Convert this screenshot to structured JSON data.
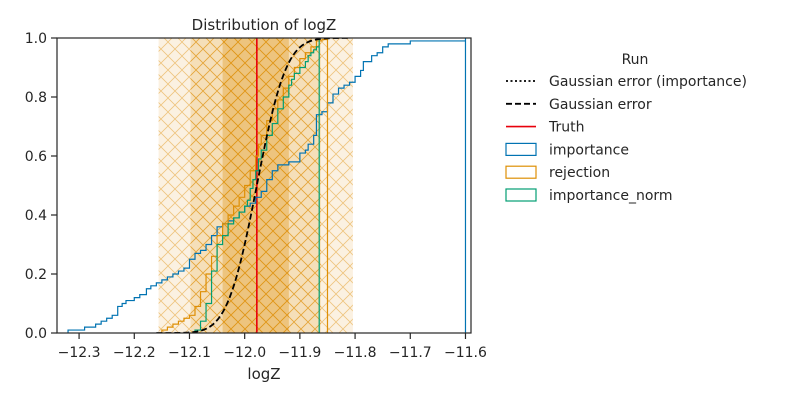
{
  "chart_data": {
    "type": "area",
    "title": "Distribution of logZ",
    "xlabel": "logZ",
    "ylabel": "",
    "xlim": [
      -12.34,
      -11.59
    ],
    "ylim": [
      0,
      1.0
    ],
    "xticks": [
      -12.3,
      -12.2,
      -12.1,
      -12.0,
      -11.9,
      -11.8,
      -11.7,
      -11.6
    ],
    "xtick_labels": [
      "−12.3",
      "−12.2",
      "−12.1",
      "−12.0",
      "−11.9",
      "−11.8",
      "−11.7",
      "−11.6"
    ],
    "yticks": [
      0.0,
      0.2,
      0.4,
      0.6,
      0.8,
      1.0
    ],
    "ytick_labels": [
      "0.0",
      "0.2",
      "0.4",
      "0.6",
      "0.8",
      "1.0"
    ],
    "grid": false,
    "legend_position": "right, outside plot",
    "legend_title": "Run",
    "legend": [
      {
        "label": "Gaussian error (importance)",
        "style": "dotted",
        "color": "#000000"
      },
      {
        "label": "Gaussian error",
        "style": "dashed",
        "color": "#000000"
      },
      {
        "label": "Truth",
        "style": "line",
        "color": "#e8000b"
      },
      {
        "label": "importance",
        "style": "box",
        "color": "#0173b2"
      },
      {
        "label": "rejection",
        "style": "box",
        "color": "#de8f05"
      },
      {
        "label": "importance_norm",
        "style": "box",
        "color": "#029e73"
      }
    ],
    "truth": -11.978,
    "error_bands": [
      {
        "x0": -12.156,
        "x1": -11.804,
        "color": "#de8f05",
        "opacity": 0.12,
        "hatch": true
      },
      {
        "x0": -12.098,
        "x1": -11.862,
        "color": "#de8f05",
        "opacity": 0.18,
        "hatch": true
      },
      {
        "x0": -12.04,
        "x1": -11.92,
        "color": "#de8f05",
        "opacity": 0.33,
        "hatch": true
      }
    ],
    "gaussian": {
      "mean": -11.978,
      "sigma": 0.042,
      "x_range": [
        -12.16,
        -11.81
      ]
    },
    "series": [
      {
        "name": "importance",
        "color": "#0173b2",
        "x": [
          -12.32,
          -12.29,
          -12.27,
          -12.26,
          -12.25,
          -12.24,
          -12.23,
          -12.222,
          -12.215,
          -12.2,
          -12.19,
          -12.178,
          -12.17,
          -12.16,
          -12.15,
          -12.14,
          -12.13,
          -12.12,
          -12.11,
          -12.1,
          -12.09,
          -12.08,
          -12.07,
          -12.06,
          -12.05,
          -12.04,
          -12.03,
          -12.02,
          -12.01,
          -12.0,
          -11.99,
          -11.98,
          -11.97,
          -11.96,
          -11.95,
          -11.94,
          -11.92,
          -11.9,
          -11.89,
          -11.885,
          -11.875,
          -11.87,
          -11.86,
          -11.85,
          -11.84,
          -11.83,
          -11.82,
          -11.81,
          -11.8,
          -11.79,
          -11.785,
          -11.77,
          -11.76,
          -11.75,
          -11.74,
          -11.72,
          -11.7,
          -11.68,
          -11.65,
          -11.6
        ],
        "y": [
          0.01,
          0.02,
          0.03,
          0.04,
          0.05,
          0.06,
          0.09,
          0.1,
          0.11,
          0.12,
          0.13,
          0.15,
          0.16,
          0.17,
          0.18,
          0.19,
          0.2,
          0.21,
          0.22,
          0.25,
          0.27,
          0.28,
          0.3,
          0.33,
          0.36,
          0.37,
          0.38,
          0.39,
          0.41,
          0.43,
          0.44,
          0.46,
          0.48,
          0.52,
          0.55,
          0.57,
          0.58,
          0.61,
          0.62,
          0.64,
          0.67,
          0.74,
          0.75,
          0.78,
          0.81,
          0.83,
          0.84,
          0.85,
          0.87,
          0.89,
          0.92,
          0.94,
          0.95,
          0.97,
          0.98,
          0.98,
          0.99,
          0.99,
          0.99,
          1.0
        ]
      },
      {
        "name": "rejection",
        "color": "#de8f05",
        "x": [
          -12.15,
          -12.14,
          -12.13,
          -12.12,
          -12.11,
          -12.1,
          -12.09,
          -12.08,
          -12.07,
          -12.06,
          -12.05,
          -12.04,
          -12.03,
          -12.02,
          -12.01,
          -12.0,
          -11.99,
          -11.98,
          -11.975,
          -11.97,
          -11.96,
          -11.95,
          -11.94,
          -11.93,
          -11.92,
          -11.91,
          -11.9,
          -11.89,
          -11.88,
          -11.87,
          -11.86,
          -11.85
        ],
        "y": [
          0.01,
          0.02,
          0.03,
          0.04,
          0.05,
          0.06,
          0.09,
          0.14,
          0.2,
          0.26,
          0.33,
          0.37,
          0.4,
          0.43,
          0.46,
          0.5,
          0.55,
          0.6,
          0.64,
          0.67,
          0.72,
          0.76,
          0.79,
          0.83,
          0.87,
          0.9,
          0.93,
          0.95,
          0.97,
          0.99,
          0.995,
          1.0
        ]
      },
      {
        "name": "importance_norm",
        "color": "#029e73",
        "x": [
          -12.09,
          -12.08,
          -12.07,
          -12.06,
          -12.05,
          -12.04,
          -12.03,
          -12.02,
          -12.01,
          -12.0,
          -11.995,
          -11.99,
          -11.985,
          -11.98,
          -11.975,
          -11.97,
          -11.96,
          -11.95,
          -11.94,
          -11.93,
          -11.92,
          -11.915,
          -11.91,
          -11.9,
          -11.89,
          -11.885,
          -11.88,
          -11.875,
          -11.87,
          -11.865
        ],
        "y": [
          0.01,
          0.04,
          0.1,
          0.21,
          0.3,
          0.33,
          0.37,
          0.39,
          0.41,
          0.43,
          0.45,
          0.49,
          0.52,
          0.55,
          0.59,
          0.62,
          0.67,
          0.71,
          0.76,
          0.8,
          0.84,
          0.86,
          0.88,
          0.9,
          0.92,
          0.94,
          0.95,
          0.96,
          0.97,
          1.0
        ]
      }
    ]
  }
}
